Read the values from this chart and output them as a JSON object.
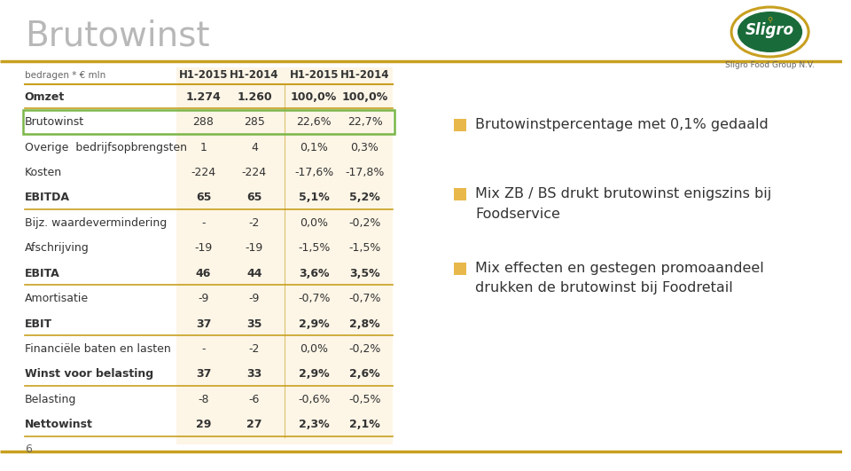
{
  "title": "Brutowinst",
  "title_color": "#b8b8b8",
  "accent_color": "#c8a020",
  "background_color": "#ffffff",
  "table_bg_light": "#fdf5e6",
  "header_text": "bedragen * € mln",
  "col_headers": [
    "H1-2015",
    "H1-2014",
    "H1-2015",
    "H1-2014"
  ],
  "rows": [
    {
      "label": "Omzet",
      "bold": true,
      "values": [
        "1.274",
        "1.260",
        "100,0%",
        "100,0%"
      ],
      "line_below": true
    },
    {
      "label": "Brutowinst",
      "bold": false,
      "values": [
        "288",
        "285",
        "22,6%",
        "22,7%"
      ],
      "line_below": false,
      "highlight_box": true
    },
    {
      "label": "Overige  bedrijfsopbrengsten",
      "bold": false,
      "values": [
        "1",
        "4",
        "0,1%",
        "0,3%"
      ],
      "line_below": false
    },
    {
      "label": "Kosten",
      "bold": false,
      "values": [
        "-224",
        "-224",
        "-17,6%",
        "-17,8%"
      ],
      "line_below": false
    },
    {
      "label": "EBITDA",
      "bold": true,
      "values": [
        "65",
        "65",
        "5,1%",
        "5,2%"
      ],
      "line_below": true
    },
    {
      "label": "Bijz. waardevermindering",
      "bold": false,
      "values": [
        "-",
        "-2",
        "0,0%",
        "-0,2%"
      ],
      "line_below": false
    },
    {
      "label": "Afschrijving",
      "bold": false,
      "values": [
        "-19",
        "-19",
        "-1,5%",
        "-1,5%"
      ],
      "line_below": false
    },
    {
      "label": "EBITA",
      "bold": true,
      "values": [
        "46",
        "44",
        "3,6%",
        "3,5%"
      ],
      "line_below": true
    },
    {
      "label": "Amortisatie",
      "bold": false,
      "values": [
        "-9",
        "-9",
        "-0,7%",
        "-0,7%"
      ],
      "line_below": false
    },
    {
      "label": "EBIT",
      "bold": true,
      "values": [
        "37",
        "35",
        "2,9%",
        "2,8%"
      ],
      "line_below": true
    },
    {
      "label": "Financiële baten en lasten",
      "bold": false,
      "values": [
        "-",
        "-2",
        "0,0%",
        "-0,2%"
      ],
      "line_below": false
    },
    {
      "label": "Winst voor belasting",
      "bold": true,
      "values": [
        "37",
        "33",
        "2,9%",
        "2,6%"
      ],
      "line_below": true
    },
    {
      "label": "Belasting",
      "bold": false,
      "values": [
        "-8",
        "-6",
        "-0,6%",
        "-0,5%"
      ],
      "line_below": false
    },
    {
      "label": "Nettowinst",
      "bold": true,
      "values": [
        "29",
        "27",
        "2,3%",
        "2,1%"
      ],
      "line_below": true
    }
  ],
  "bullets": [
    [
      "Brutowinstpercentage met 0,1% gedaald"
    ],
    [
      "Mix ZB / BS drukt brutowinst enigszins bij",
      "Foodservice"
    ],
    [
      "Mix effecten en gestegen promoaandeel",
      "drukken de brutowinst bij Foodretail"
    ]
  ],
  "bullet_color": "#e8b84b",
  "footer_number": "6",
  "green_border_color": "#7ab648",
  "separator_color": "#c8a020",
  "logo_green": "#1a6b3a",
  "logo_yellow": "#c8a020",
  "text_color": "#333333",
  "subtext_color": "#666666"
}
